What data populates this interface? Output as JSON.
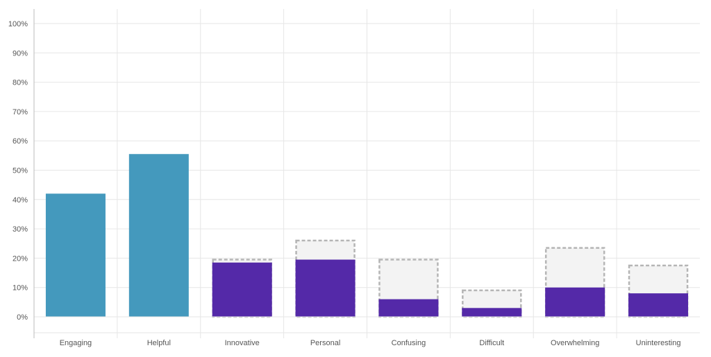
{
  "chart_data": {
    "type": "bar",
    "categories": [
      "Engaging",
      "Helpful",
      "Innovative",
      "Personal",
      "Confusing",
      "Difficult",
      "Overwhelming",
      "Uninteresting"
    ],
    "series": [
      {
        "values": [
          42,
          55.5,
          18.5,
          19.5,
          6,
          3,
          10,
          8
        ]
      },
      {
        "values": [
          null,
          null,
          19.5,
          26,
          19.5,
          9,
          23.5,
          17.5
        ]
      }
    ],
    "yticks": [
      "0%",
      "10%",
      "20%",
      "30%",
      "40%",
      "50%",
      "60%",
      "70%",
      "80%",
      "90%",
      "100%"
    ],
    "ylim": [
      0,
      100
    ],
    "grid": true,
    "legend": "none",
    "colors": {
      "positive": "#4499bd",
      "negative": "#5429a8",
      "reference_fill": "#f3f3f3",
      "reference_stroke": "#b5b5b5",
      "grid": "#e6e6e6",
      "axis": "#bbbbbb"
    }
  }
}
